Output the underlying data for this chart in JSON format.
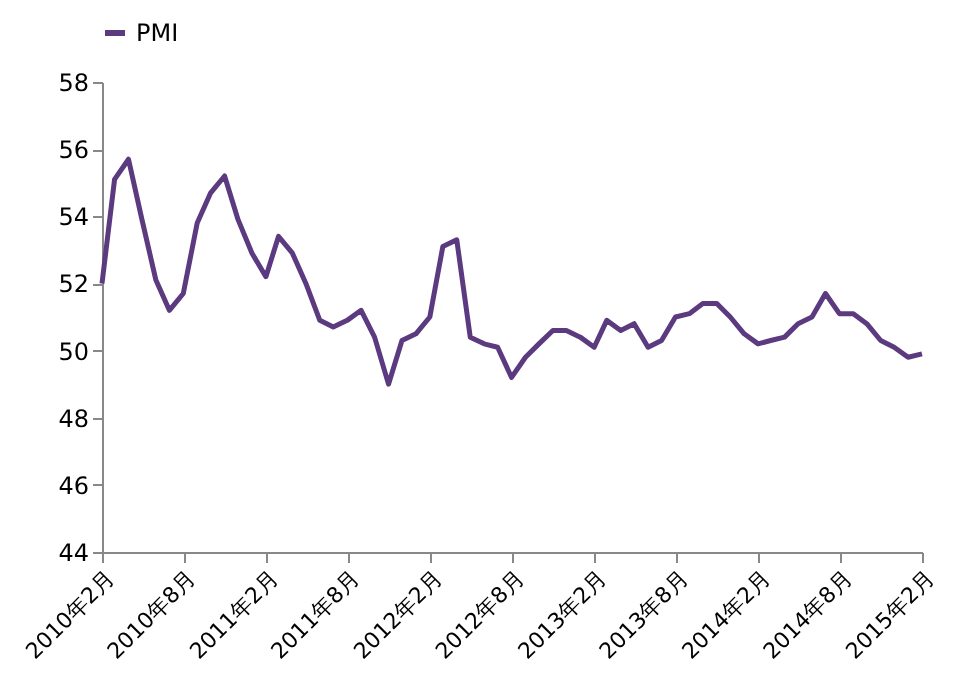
{
  "chart_data": {
    "type": "line",
    "x": [
      "2010-02",
      "2010-03",
      "2010-04",
      "2010-05",
      "2010-06",
      "2010-07",
      "2010-08",
      "2010-09",
      "2010-10",
      "2010-11",
      "2010-12",
      "2011-01",
      "2011-02",
      "2011-03",
      "2011-04",
      "2011-05",
      "2011-06",
      "2011-07",
      "2011-08",
      "2011-09",
      "2011-10",
      "2011-11",
      "2011-12",
      "2012-01",
      "2012-02",
      "2012-03",
      "2012-04",
      "2012-05",
      "2012-06",
      "2012-07",
      "2012-08",
      "2012-09",
      "2012-10",
      "2012-11",
      "2012-12",
      "2013-01",
      "2013-02",
      "2013-03",
      "2013-04",
      "2013-05",
      "2013-06",
      "2013-07",
      "2013-08",
      "2013-09",
      "2013-10",
      "2013-11",
      "2013-12",
      "2014-01",
      "2014-02",
      "2014-03",
      "2014-04",
      "2014-05",
      "2014-06",
      "2014-07",
      "2014-08",
      "2014-09",
      "2014-10",
      "2014-11",
      "2014-12",
      "2015-01",
      "2015-02"
    ],
    "series": [
      {
        "name": "PMI",
        "color": "#5b3a80",
        "values": [
          52.0,
          55.1,
          55.7,
          53.9,
          52.1,
          51.2,
          51.7,
          53.8,
          54.7,
          55.2,
          53.9,
          52.9,
          52.2,
          53.4,
          52.9,
          52.0,
          50.9,
          50.7,
          50.9,
          51.2,
          50.4,
          49.0,
          50.3,
          50.5,
          51.0,
          53.1,
          53.3,
          50.4,
          50.2,
          50.1,
          49.2,
          49.8,
          50.2,
          50.6,
          50.6,
          50.4,
          50.1,
          50.9,
          50.6,
          50.8,
          50.1,
          50.3,
          51.0,
          51.1,
          51.4,
          51.4,
          51.0,
          50.5,
          50.2,
          50.3,
          50.4,
          50.8,
          51.0,
          51.7,
          51.1,
          51.1,
          50.8,
          50.3,
          50.1,
          49.8,
          49.9
        ]
      }
    ],
    "xlim": [
      "2010-02",
      "2015-02"
    ],
    "xticks": [
      {
        "value": "2010-02",
        "label": "2010年2月"
      },
      {
        "value": "2010-08",
        "label": "2010年8月"
      },
      {
        "value": "2011-02",
        "label": "2011年2月"
      },
      {
        "value": "2011-08",
        "label": "2011年8月"
      },
      {
        "value": "2012-02",
        "label": "2012年2月"
      },
      {
        "value": "2012-08",
        "label": "2012年8月"
      },
      {
        "value": "2013-02",
        "label": "2013年2月"
      },
      {
        "value": "2013-08",
        "label": "2013年8月"
      },
      {
        "value": "2014-02",
        "label": "2014年2月"
      },
      {
        "value": "2014-08",
        "label": "2014年8月"
      },
      {
        "value": "2015-02",
        "label": "2015年2月"
      }
    ],
    "ylim": [
      44,
      58
    ],
    "yticks": [
      44,
      46,
      48,
      50,
      52,
      54,
      56,
      58
    ],
    "grid": false,
    "legend": "top",
    "marker": "none",
    "line_style": "solid"
  }
}
